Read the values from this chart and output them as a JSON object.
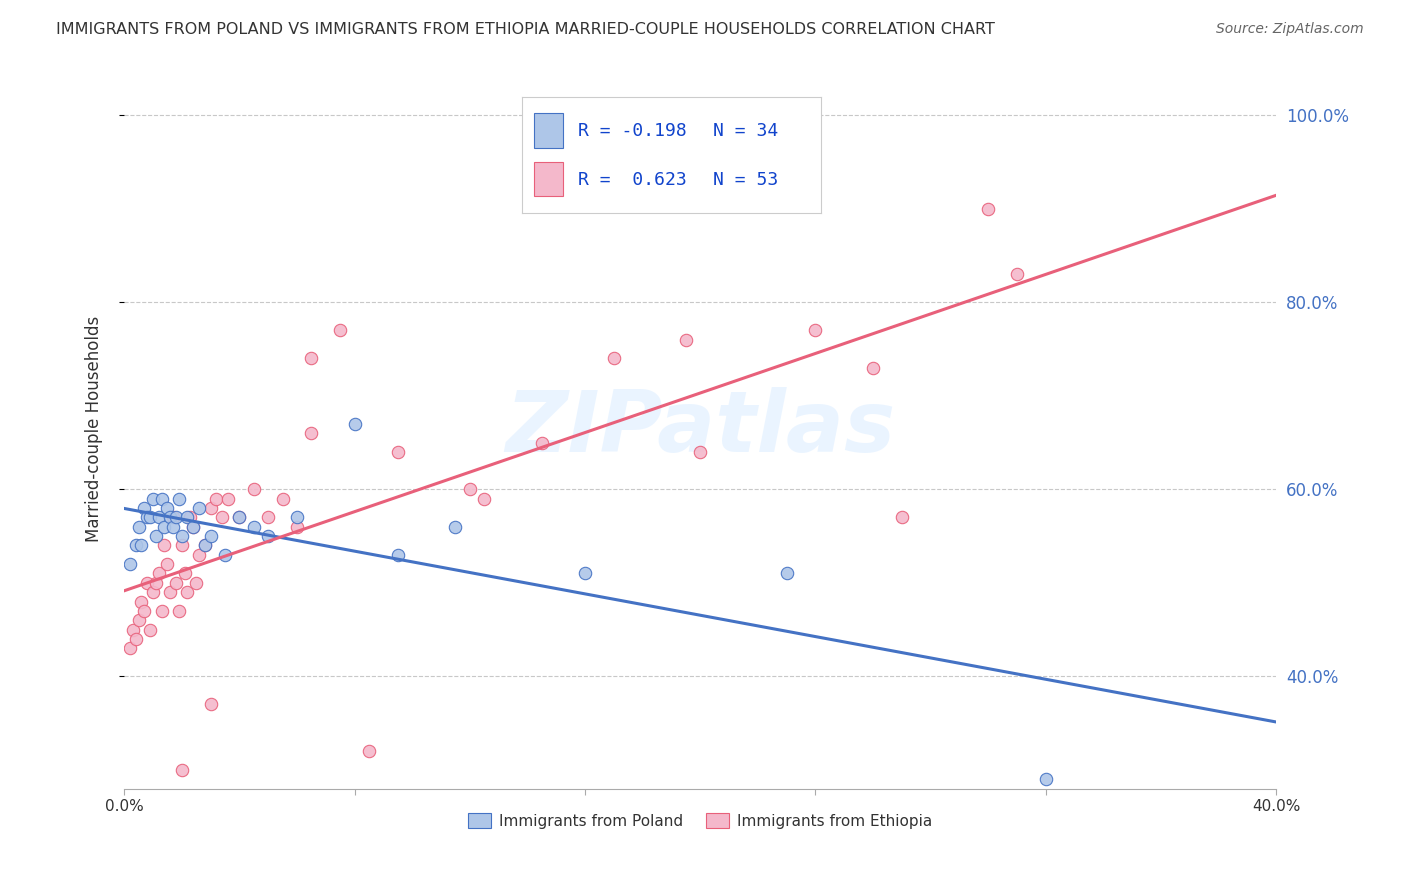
{
  "title": "IMMIGRANTS FROM POLAND VS IMMIGRANTS FROM ETHIOPIA MARRIED-COUPLE HOUSEHOLDS CORRELATION CHART",
  "source": "Source: ZipAtlas.com",
  "ylabel": "Married-couple Households",
  "xlim": [
    0.0,
    0.4
  ],
  "ylim": [
    0.28,
    1.05
  ],
  "yticks": [
    0.4,
    0.6,
    0.8,
    1.0
  ],
  "ytick_labels": [
    "40.0%",
    "60.0%",
    "80.0%",
    "100.0%"
  ],
  "poland_color": "#aec6e8",
  "ethiopia_color": "#f4b8cb",
  "poland_line_color": "#4472c4",
  "ethiopia_line_color": "#e8607a",
  "R_poland": -0.198,
  "N_poland": 34,
  "R_ethiopia": 0.623,
  "N_ethiopia": 53,
  "watermark": "ZIPatlas",
  "poland_scatter_x": [
    0.002,
    0.004,
    0.005,
    0.006,
    0.007,
    0.008,
    0.009,
    0.01,
    0.011,
    0.012,
    0.013,
    0.014,
    0.015,
    0.016,
    0.017,
    0.018,
    0.019,
    0.02,
    0.022,
    0.024,
    0.026,
    0.028,
    0.03,
    0.035,
    0.04,
    0.045,
    0.05,
    0.06,
    0.08,
    0.095,
    0.115,
    0.16,
    0.23,
    0.32
  ],
  "poland_scatter_y": [
    0.52,
    0.54,
    0.56,
    0.54,
    0.58,
    0.57,
    0.57,
    0.59,
    0.55,
    0.57,
    0.59,
    0.56,
    0.58,
    0.57,
    0.56,
    0.57,
    0.59,
    0.55,
    0.57,
    0.56,
    0.58,
    0.54,
    0.55,
    0.53,
    0.57,
    0.56,
    0.55,
    0.57,
    0.67,
    0.53,
    0.56,
    0.51,
    0.51,
    0.29
  ],
  "ethiopia_scatter_x": [
    0.002,
    0.003,
    0.004,
    0.005,
    0.006,
    0.007,
    0.008,
    0.009,
    0.01,
    0.011,
    0.012,
    0.013,
    0.014,
    0.015,
    0.016,
    0.017,
    0.018,
    0.019,
    0.02,
    0.021,
    0.022,
    0.023,
    0.024,
    0.025,
    0.026,
    0.028,
    0.03,
    0.032,
    0.034,
    0.036,
    0.04,
    0.045,
    0.05,
    0.055,
    0.06,
    0.065,
    0.075,
    0.085,
    0.095,
    0.12,
    0.145,
    0.17,
    0.2,
    0.24,
    0.27,
    0.3,
    0.26,
    0.31,
    0.195,
    0.125,
    0.065,
    0.03,
    0.02
  ],
  "ethiopia_scatter_y": [
    0.43,
    0.45,
    0.44,
    0.46,
    0.48,
    0.47,
    0.5,
    0.45,
    0.49,
    0.5,
    0.51,
    0.47,
    0.54,
    0.52,
    0.49,
    0.57,
    0.5,
    0.47,
    0.54,
    0.51,
    0.49,
    0.57,
    0.56,
    0.5,
    0.53,
    0.54,
    0.58,
    0.59,
    0.57,
    0.59,
    0.57,
    0.6,
    0.57,
    0.59,
    0.56,
    0.66,
    0.77,
    0.32,
    0.64,
    0.6,
    0.65,
    0.74,
    0.64,
    0.77,
    0.57,
    0.9,
    0.73,
    0.83,
    0.76,
    0.59,
    0.74,
    0.37,
    0.3
  ],
  "background_color": "#ffffff",
  "grid_color": "#c8c8c8"
}
